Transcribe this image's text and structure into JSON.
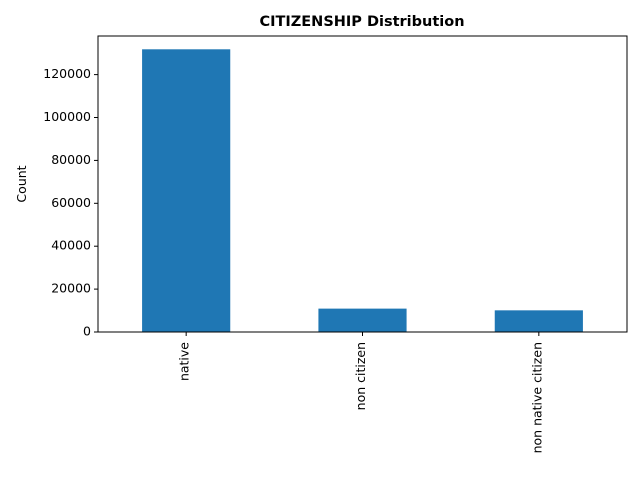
{
  "chart_data": {
    "type": "bar",
    "title": "CITIZENSHIP Distribution",
    "xlabel": "",
    "ylabel": "Count",
    "categories": [
      "native",
      "non citizen",
      "non native citizen"
    ],
    "values": [
      131800,
      10900,
      10100
    ],
    "ylim": [
      0,
      138000
    ],
    "yticks": [
      0,
      20000,
      40000,
      60000,
      80000,
      100000,
      120000
    ],
    "ytick_labels": [
      "0",
      "20000",
      "40000",
      "60000",
      "80000",
      "100000",
      "120000"
    ],
    "bar_color": "#1f77b4",
    "grid": false,
    "legend": "none"
  }
}
